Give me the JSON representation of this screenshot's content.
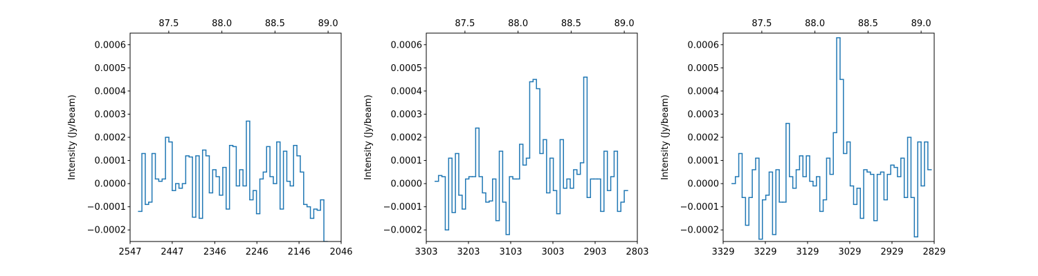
{
  "chart_data": [
    {
      "type": "step",
      "ylabel": "Intensity (Jy/beam)",
      "color": "#1f77b4",
      "x": [
        2523,
        2515,
        2507,
        2499,
        2491,
        2483,
        2475,
        2467,
        2459,
        2451,
        2443,
        2435,
        2427,
        2419,
        2411,
        2403,
        2395,
        2387,
        2379,
        2371,
        2363,
        2355,
        2347,
        2339,
        2331,
        2323,
        2315,
        2307,
        2299,
        2291,
        2283,
        2275,
        2267,
        2259,
        2251,
        2243,
        2235,
        2227,
        2219,
        2211,
        2203,
        2195,
        2187,
        2179,
        2171,
        2163,
        2155,
        2147,
        2139,
        2131,
        2123,
        2115,
        2107,
        2099,
        2091,
        2083
      ],
      "values": [
        -0.00012,
        0.00013,
        -9e-05,
        -8e-05,
        0.00013,
        2e-05,
        1e-05,
        2e-05,
        0.0002,
        0.00018,
        -3e-05,
        0.0,
        -2e-05,
        0.0,
        0.00012,
        0.000115,
        -0.000145,
        0.00012,
        -0.00015,
        0.000145,
        0.00012,
        -4e-05,
        6e-05,
        3e-05,
        -5e-05,
        7e-05,
        -0.00011,
        0.000165,
        0.00016,
        -1e-05,
        6e-05,
        -1e-05,
        0.00027,
        -7e-05,
        -3e-05,
        -0.00013,
        2e-05,
        5e-05,
        0.00016,
        3e-05,
        0.0,
        0.00018,
        -0.00011,
        0.00014,
        1e-05,
        -1e-05,
        0.000165,
        0.00012,
        5e-05,
        -9e-05,
        -0.0001,
        -0.00015,
        -0.00011,
        -0.000115,
        -7e-05,
        -0.00025
      ],
      "xlim": [
        2547,
        2046
      ],
      "xticks": [
        2547,
        2447,
        2346,
        2246,
        2146,
        2046
      ],
      "x2lim": [
        87.136,
        89.123
      ],
      "x2ticks": [
        87.5,
        {
          "value": 88.0,
          "label": "88.0"
        },
        88.5,
        {
          "value": 89.0,
          "label": "89.0"
        }
      ],
      "ylim": [
        -0.00025,
        0.00065
      ],
      "yticks": [
        {
          "value": -0.0002,
          "label": "−0.0002"
        },
        {
          "value": -0.0001,
          "label": "−0.0001"
        },
        {
          "value": 0,
          "label": "0.0000"
        },
        {
          "value": 0.0001,
          "label": "0.0001"
        },
        {
          "value": 0.0002,
          "label": "0.0002"
        },
        {
          "value": 0.0003,
          "label": "0.0003"
        },
        {
          "value": 0.0004,
          "label": "0.0004"
        },
        {
          "value": 0.0005,
          "label": "0.0005"
        },
        {
          "value": 0.0006,
          "label": "0.0006"
        }
      ]
    },
    {
      "type": "step",
      "ylabel": "Intensity (Jy/beam)",
      "color": "#1f77b4",
      "x": [
        3278,
        3270,
        3262,
        3254,
        3246,
        3238,
        3230,
        3222,
        3214,
        3206,
        3198,
        3190,
        3182,
        3174,
        3166,
        3158,
        3150,
        3142,
        3134,
        3126,
        3118,
        3110,
        3102,
        3094,
        3086,
        3078,
        3070,
        3062,
        3054,
        3046,
        3038,
        3030,
        3022,
        3014,
        3006,
        2998,
        2990,
        2982,
        2974,
        2966,
        2958,
        2950,
        2942,
        2934,
        2926,
        2918,
        2910,
        2902,
        2894,
        2886,
        2878,
        2870,
        2862,
        2854,
        2846,
        2838,
        2830
      ],
      "values": [
        1e-05,
        3.5e-05,
        3e-05,
        -0.0002,
        0.00011,
        -0.000125,
        0.00013,
        -5e-05,
        -0.00011,
        2e-05,
        3e-05,
        3e-05,
        0.00024,
        3e-05,
        -4e-05,
        -8e-05,
        -7.5e-05,
        2e-05,
        -0.00016,
        0.00014,
        -8e-05,
        -0.00022,
        3e-05,
        2e-05,
        2e-05,
        0.00017,
        8e-05,
        0.00011,
        0.00044,
        0.00045,
        0.00041,
        0.00013,
        0.00019,
        -4e-05,
        0.00011,
        -3e-05,
        -0.00013,
        0.00019,
        -2e-05,
        2e-05,
        -2e-05,
        6e-05,
        4e-05,
        9e-05,
        0.00046,
        -6e-05,
        2e-05,
        2e-05,
        2e-05,
        -0.00012,
        0.00014,
        -3e-05,
        3e-05,
        0.00014,
        -0.00012,
        -8e-05,
        -3e-05
      ],
      "xlim": [
        3303,
        2803
      ],
      "xticks": [
        3303,
        3203,
        3103,
        3003,
        2903,
        2803
      ],
      "x2lim": [
        87.136,
        89.123
      ],
      "x2ticks": [
        87.5,
        {
          "value": 88.0,
          "label": "88.0"
        },
        88.5,
        {
          "value": 89.0,
          "label": "89.0"
        }
      ],
      "ylim": [
        -0.00025,
        0.00065
      ],
      "yticks": [
        {
          "value": -0.0002,
          "label": "−0.0002"
        },
        {
          "value": -0.0001,
          "label": "−0.0001"
        },
        {
          "value": 0,
          "label": "0.0000"
        },
        {
          "value": 0.0001,
          "label": "0.0001"
        },
        {
          "value": 0.0002,
          "label": "0.0002"
        },
        {
          "value": 0.0003,
          "label": "0.0003"
        },
        {
          "value": 0.0004,
          "label": "0.0004"
        },
        {
          "value": 0.0005,
          "label": "0.0005"
        },
        {
          "value": 0.0006,
          "label": "0.0006"
        }
      ]
    },
    {
      "type": "step",
      "ylabel": "Intensity (Jy/beam)",
      "color": "#1f77b4",
      "x": [
        3304,
        3296,
        3288,
        3280,
        3272,
        3264,
        3256,
        3248,
        3240,
        3232,
        3224,
        3216,
        3208,
        3200,
        3192,
        3184,
        3176,
        3168,
        3160,
        3152,
        3144,
        3136,
        3128,
        3120,
        3112,
        3104,
        3096,
        3088,
        3080,
        3072,
        3064,
        3056,
        3048,
        3040,
        3032,
        3024,
        3016,
        3008,
        3000,
        2992,
        2984,
        2976,
        2968,
        2960,
        2952,
        2944,
        2936,
        2928,
        2920,
        2912,
        2904,
        2896,
        2888,
        2880,
        2872,
        2864,
        2856,
        2848,
        2840
      ],
      "values": [
        0.0,
        3e-05,
        0.00013,
        -6e-05,
        -0.00018,
        -6e-05,
        6e-05,
        0.00011,
        -0.00024,
        -7e-05,
        -5e-05,
        5e-05,
        -0.00022,
        6e-05,
        -8e-05,
        -8e-05,
        0.00026,
        3e-05,
        -2e-05,
        6e-05,
        0.00012,
        3e-05,
        0.00012,
        1e-05,
        -1e-05,
        3e-05,
        -0.00012,
        -7e-05,
        0.00011,
        4e-05,
        0.00022,
        0.00063,
        0.00045,
        0.00013,
        0.00018,
        -1e-05,
        -9e-05,
        -2e-05,
        -0.00015,
        6e-05,
        5e-05,
        4e-05,
        -0.00016,
        4e-05,
        5e-05,
        -7e-05,
        4e-05,
        8e-05,
        7e-05,
        3e-05,
        0.00011,
        -6e-05,
        0.0002,
        -6e-05,
        -0.00023,
        0.00018,
        -1e-05,
        0.00018,
        6e-05
      ],
      "xlim": [
        3329,
        2829
      ],
      "xticks": [
        3329,
        3229,
        3129,
        3029,
        2929,
        2829
      ],
      "x2lim": [
        87.136,
        89.123
      ],
      "x2ticks": [
        87.5,
        {
          "value": 88.0,
          "label": "88.0"
        },
        88.5,
        {
          "value": 89.0,
          "label": "89.0"
        }
      ],
      "ylim": [
        -0.00025,
        0.00065
      ],
      "yticks": [
        {
          "value": -0.0002,
          "label": "−0.0002"
        },
        {
          "value": -0.0001,
          "label": "−0.0001"
        },
        {
          "value": 0,
          "label": "0.0000"
        },
        {
          "value": 0.0001,
          "label": "0.0001"
        },
        {
          "value": 0.0002,
          "label": "0.0002"
        },
        {
          "value": 0.0003,
          "label": "0.0003"
        },
        {
          "value": 0.0004,
          "label": "0.0004"
        },
        {
          "value": 0.0005,
          "label": "0.0005"
        },
        {
          "value": 0.0006,
          "label": "0.0006"
        }
      ]
    }
  ]
}
